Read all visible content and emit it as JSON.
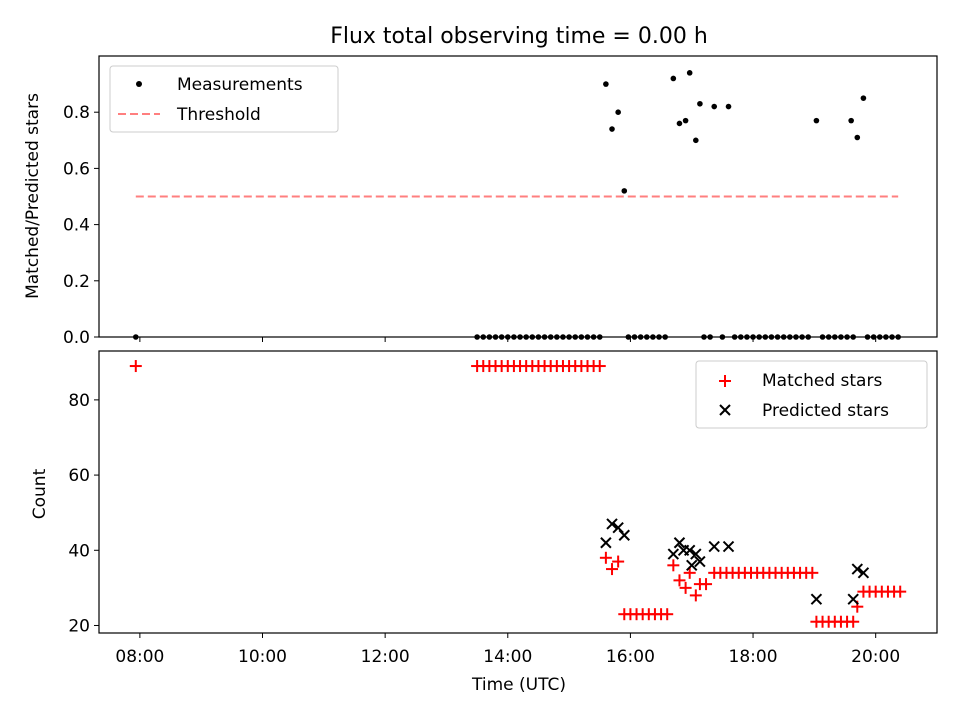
{
  "title": "Flux total observing time = 0.00 h",
  "chart_data": [
    {
      "type": "scatter",
      "ylabel": "Matched/Predicted stars",
      "xlim": [
        "07:20",
        "21:00"
      ],
      "ylim": [
        0,
        1.0
      ],
      "yticks": [
        0.0,
        0.2,
        0.4,
        0.6,
        0.8
      ],
      "ytick_labels": [
        "0.0",
        "0.2",
        "0.4",
        "0.6",
        "0.8"
      ],
      "legend_position": "top-left",
      "grid": false,
      "series": [
        {
          "name": "Measurements",
          "marker": "dot",
          "color": "#000000",
          "points": [
            [
              "07:56",
              0.0
            ],
            [
              "13:30",
              0.0
            ],
            [
              "13:36",
              0.0
            ],
            [
              "13:42",
              0.0
            ],
            [
              "13:48",
              0.0
            ],
            [
              "13:54",
              0.0
            ],
            [
              "14:00",
              0.0
            ],
            [
              "14:06",
              0.0
            ],
            [
              "14:12",
              0.0
            ],
            [
              "14:18",
              0.0
            ],
            [
              "14:24",
              0.0
            ],
            [
              "14:30",
              0.0
            ],
            [
              "14:36",
              0.0
            ],
            [
              "14:42",
              0.0
            ],
            [
              "14:48",
              0.0
            ],
            [
              "14:54",
              0.0
            ],
            [
              "15:00",
              0.0
            ],
            [
              "15:06",
              0.0
            ],
            [
              "15:12",
              0.0
            ],
            [
              "15:18",
              0.0
            ],
            [
              "15:24",
              0.0
            ],
            [
              "15:30",
              0.0
            ],
            [
              "15:36",
              0.9
            ],
            [
              "15:42",
              0.74
            ],
            [
              "15:48",
              0.8
            ],
            [
              "15:54",
              0.52
            ],
            [
              "15:58",
              0.0
            ],
            [
              "16:04",
              0.0
            ],
            [
              "16:10",
              0.0
            ],
            [
              "16:16",
              0.0
            ],
            [
              "16:22",
              0.0
            ],
            [
              "16:28",
              0.0
            ],
            [
              "16:34",
              0.0
            ],
            [
              "16:42",
              0.92
            ],
            [
              "16:48",
              0.76
            ],
            [
              "16:54",
              0.77
            ],
            [
              "16:58",
              0.94
            ],
            [
              "17:04",
              0.7
            ],
            [
              "17:08",
              0.83
            ],
            [
              "17:22",
              0.82
            ],
            [
              "17:36",
              0.82
            ],
            [
              "17:12",
              0.0
            ],
            [
              "17:18",
              0.0
            ],
            [
              "17:30",
              0.0
            ],
            [
              "17:42",
              0.0
            ],
            [
              "17:48",
              0.0
            ],
            [
              "17:54",
              0.0
            ],
            [
              "18:00",
              0.0
            ],
            [
              "18:06",
              0.0
            ],
            [
              "18:12",
              0.0
            ],
            [
              "18:18",
              0.0
            ],
            [
              "18:24",
              0.0
            ],
            [
              "18:30",
              0.0
            ],
            [
              "18:36",
              0.0
            ],
            [
              "18:42",
              0.0
            ],
            [
              "18:48",
              0.0
            ],
            [
              "18:54",
              0.0
            ],
            [
              "19:02",
              0.77
            ],
            [
              "19:08",
              0.0
            ],
            [
              "19:14",
              0.0
            ],
            [
              "19:20",
              0.0
            ],
            [
              "19:26",
              0.0
            ],
            [
              "19:32",
              0.0
            ],
            [
              "19:38",
              0.0
            ],
            [
              "19:36",
              0.77
            ],
            [
              "19:42",
              0.71
            ],
            [
              "19:48",
              0.85
            ],
            [
              "19:52",
              0.0
            ],
            [
              "19:58",
              0.0
            ],
            [
              "20:04",
              0.0
            ],
            [
              "20:10",
              0.0
            ],
            [
              "20:16",
              0.0
            ],
            [
              "20:22",
              0.0
            ]
          ]
        },
        {
          "name": "Threshold",
          "style": "dashed-line",
          "color": "#ff7f7f",
          "points": [
            [
              "07:56",
              0.5
            ],
            [
              "20:22",
              0.5
            ]
          ]
        }
      ]
    },
    {
      "type": "scatter",
      "xlabel": "Time (UTC)",
      "ylabel": "Count",
      "xlim": [
        "07:20",
        "21:00"
      ],
      "ylim": [
        18,
        93
      ],
      "yticks": [
        20,
        40,
        60,
        80
      ],
      "ytick_labels": [
        "20",
        "40",
        "60",
        "80"
      ],
      "xticks": [
        "08:00",
        "10:00",
        "12:00",
        "14:00",
        "16:00",
        "18:00",
        "20:00"
      ],
      "xtick_labels": [
        "08:00",
        "10:00",
        "12:00",
        "14:00",
        "16:00",
        "18:00",
        "20:00"
      ],
      "legend_position": "top-right",
      "grid": false,
      "series": [
        {
          "name": "Matched stars",
          "marker": "plus",
          "color": "#ff0000",
          "points": [
            [
              "07:56",
              89
            ],
            [
              "13:30",
              89
            ],
            [
              "13:36",
              89
            ],
            [
              "13:42",
              89
            ],
            [
              "13:48",
              89
            ],
            [
              "13:54",
              89
            ],
            [
              "14:00",
              89
            ],
            [
              "14:06",
              89
            ],
            [
              "14:12",
              89
            ],
            [
              "14:18",
              89
            ],
            [
              "14:24",
              89
            ],
            [
              "14:30",
              89
            ],
            [
              "14:36",
              89
            ],
            [
              "14:42",
              89
            ],
            [
              "14:48",
              89
            ],
            [
              "14:54",
              89
            ],
            [
              "15:00",
              89
            ],
            [
              "15:06",
              89
            ],
            [
              "15:12",
              89
            ],
            [
              "15:18",
              89
            ],
            [
              "15:24",
              89
            ],
            [
              "15:30",
              89
            ],
            [
              "15:36",
              38
            ],
            [
              "15:42",
              35
            ],
            [
              "15:48",
              37
            ],
            [
              "15:54",
              23
            ],
            [
              "16:00",
              23
            ],
            [
              "16:06",
              23
            ],
            [
              "16:12",
              23
            ],
            [
              "16:18",
              23
            ],
            [
              "16:24",
              23
            ],
            [
              "16:30",
              23
            ],
            [
              "16:36",
              23
            ],
            [
              "16:42",
              36
            ],
            [
              "16:48",
              32
            ],
            [
              "16:54",
              30
            ],
            [
              "16:58",
              34
            ],
            [
              "17:04",
              28
            ],
            [
              "17:08",
              31
            ],
            [
              "17:14",
              31
            ],
            [
              "17:22",
              34
            ],
            [
              "17:28",
              34
            ],
            [
              "17:34",
              34
            ],
            [
              "17:40",
              34
            ],
            [
              "17:46",
              34
            ],
            [
              "17:52",
              34
            ],
            [
              "17:58",
              34
            ],
            [
              "18:04",
              34
            ],
            [
              "18:10",
              34
            ],
            [
              "18:16",
              34
            ],
            [
              "18:22",
              34
            ],
            [
              "18:28",
              34
            ],
            [
              "18:34",
              34
            ],
            [
              "18:40",
              34
            ],
            [
              "18:46",
              34
            ],
            [
              "18:52",
              34
            ],
            [
              "18:58",
              34
            ],
            [
              "19:02",
              21
            ],
            [
              "19:08",
              21
            ],
            [
              "19:14",
              21
            ],
            [
              "19:20",
              21
            ],
            [
              "19:26",
              21
            ],
            [
              "19:32",
              21
            ],
            [
              "19:38",
              21
            ],
            [
              "19:42",
              25
            ],
            [
              "19:48",
              29
            ],
            [
              "19:54",
              29
            ],
            [
              "20:00",
              29
            ],
            [
              "20:06",
              29
            ],
            [
              "20:12",
              29
            ],
            [
              "20:18",
              29
            ],
            [
              "20:24",
              29
            ]
          ]
        },
        {
          "name": "Predicted stars",
          "marker": "x",
          "color": "#000000",
          "points": [
            [
              "15:36",
              42
            ],
            [
              "15:42",
              47
            ],
            [
              "15:48",
              46
            ],
            [
              "15:54",
              44
            ],
            [
              "16:42",
              39
            ],
            [
              "16:48",
              42
            ],
            [
              "16:52",
              40
            ],
            [
              "16:58",
              40
            ],
            [
              "17:00",
              36
            ],
            [
              "17:04",
              39
            ],
            [
              "17:08",
              37
            ],
            [
              "17:22",
              41
            ],
            [
              "17:36",
              41
            ],
            [
              "19:02",
              27
            ],
            [
              "19:38",
              27
            ],
            [
              "19:42",
              35
            ],
            [
              "19:48",
              34
            ]
          ]
        }
      ]
    }
  ]
}
